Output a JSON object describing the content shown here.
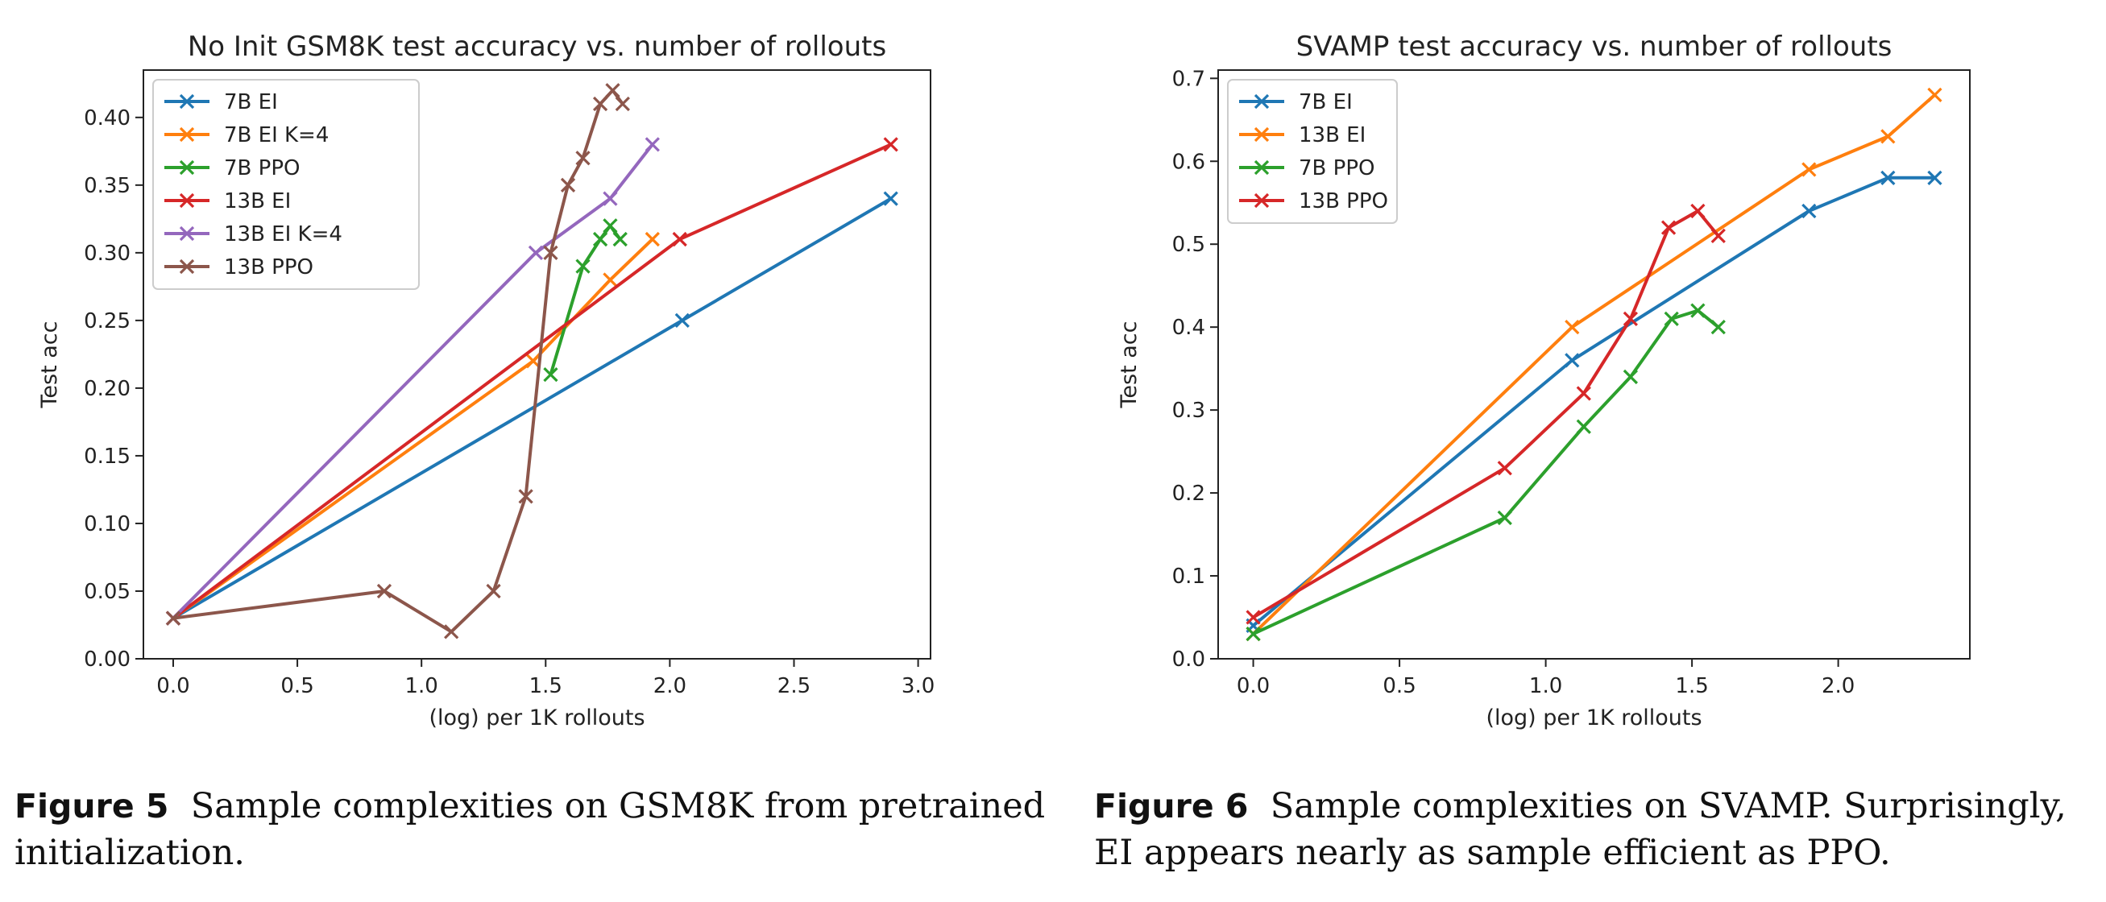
{
  "figures": [
    {
      "label": "Figure 5",
      "caption": "Sample complexities on GSM8K from pretrained initialization."
    },
    {
      "label": "Figure 6",
      "caption": "Sample complexities on SVAMP. Surprisingly, EI appears nearly as sample efficient as PPO."
    }
  ],
  "chart_data": [
    {
      "type": "line",
      "title": "No Init GSM8K test accuracy vs. number of rollouts",
      "xlabel": "(log) per 1K rollouts",
      "ylabel": "Test acc",
      "xlim": [
        -0.12,
        3.05
      ],
      "ylim": [
        0.0,
        0.435
      ],
      "xticks": [
        0.0,
        0.5,
        1.0,
        1.5,
        2.0,
        2.5,
        3.0
      ],
      "xtick_labels": [
        "0.0",
        "0.5",
        "1.0",
        "1.5",
        "2.0",
        "2.5",
        "3.0"
      ],
      "yticks": [
        0.0,
        0.05,
        0.1,
        0.15,
        0.2,
        0.25,
        0.3,
        0.35,
        0.4
      ],
      "ytick_labels": [
        "0.00",
        "0.05",
        "0.10",
        "0.15",
        "0.20",
        "0.25",
        "0.30",
        "0.35",
        "0.40"
      ],
      "grid": false,
      "legend_position": "top-left",
      "series": [
        {
          "name": "7B EI",
          "color": "#1f77b4",
          "x": [
            0.0,
            2.05,
            2.89
          ],
          "y": [
            0.03,
            0.25,
            0.34
          ]
        },
        {
          "name": "7B EI K=4",
          "color": "#ff7f0e",
          "x": [
            0.0,
            1.45,
            1.76,
            1.93
          ],
          "y": [
            0.03,
            0.22,
            0.28,
            0.31
          ]
        },
        {
          "name": "7B PPO",
          "color": "#2ca02c",
          "x": [
            1.52,
            1.65,
            1.72,
            1.76,
            1.8
          ],
          "y": [
            0.21,
            0.29,
            0.31,
            0.32,
            0.31
          ]
        },
        {
          "name": "13B EI",
          "color": "#d62728",
          "x": [
            0.0,
            2.04,
            2.89
          ],
          "y": [
            0.03,
            0.31,
            0.38
          ]
        },
        {
          "name": "13B EI K=4",
          "color": "#9467bd",
          "x": [
            0.0,
            1.46,
            1.76,
            1.93
          ],
          "y": [
            0.03,
            0.3,
            0.34,
            0.38
          ]
        },
        {
          "name": "13B PPO",
          "color": "#8c564b",
          "x": [
            0.0,
            0.85,
            1.12,
            1.29,
            1.42,
            1.52,
            1.59,
            1.65,
            1.72,
            1.77,
            1.81
          ],
          "y": [
            0.03,
            0.05,
            0.02,
            0.05,
            0.12,
            0.3,
            0.35,
            0.37,
            0.41,
            0.42,
            0.41
          ]
        }
      ]
    },
    {
      "type": "line",
      "title": "SVAMP test accuracy vs. number of rollouts",
      "xlabel": "(log) per 1K rollouts",
      "ylabel": "Test acc",
      "xlim": [
        -0.12,
        2.45
      ],
      "ylim": [
        0.0,
        0.71
      ],
      "xticks": [
        0.0,
        0.5,
        1.0,
        1.5,
        2.0
      ],
      "xtick_labels": [
        "0.0",
        "0.5",
        "1.0",
        "1.5",
        "2.0"
      ],
      "yticks": [
        0.0,
        0.1,
        0.2,
        0.3,
        0.4,
        0.5,
        0.6,
        0.7
      ],
      "ytick_labels": [
        "0.0",
        "0.1",
        "0.2",
        "0.3",
        "0.4",
        "0.5",
        "0.6",
        "0.7"
      ],
      "grid": false,
      "legend_position": "top-left",
      "series": [
        {
          "name": "7B EI",
          "color": "#1f77b4",
          "x": [
            0.0,
            1.09,
            1.9,
            2.17,
            2.33
          ],
          "y": [
            0.04,
            0.36,
            0.54,
            0.58,
            0.58
          ]
        },
        {
          "name": "13B EI",
          "color": "#ff7f0e",
          "x": [
            0.0,
            1.09,
            1.9,
            2.17,
            2.33
          ],
          "y": [
            0.03,
            0.4,
            0.59,
            0.63,
            0.68
          ]
        },
        {
          "name": "7B PPO",
          "color": "#2ca02c",
          "x": [
            0.0,
            0.86,
            1.13,
            1.29,
            1.43,
            1.52,
            1.59
          ],
          "y": [
            0.03,
            0.17,
            0.28,
            0.34,
            0.41,
            0.42,
            0.4
          ]
        },
        {
          "name": "13B PPO",
          "color": "#d62728",
          "x": [
            0.0,
            0.86,
            1.13,
            1.29,
            1.42,
            1.52,
            1.59
          ],
          "y": [
            0.05,
            0.23,
            0.32,
            0.41,
            0.52,
            0.54,
            0.51
          ]
        }
      ]
    }
  ]
}
